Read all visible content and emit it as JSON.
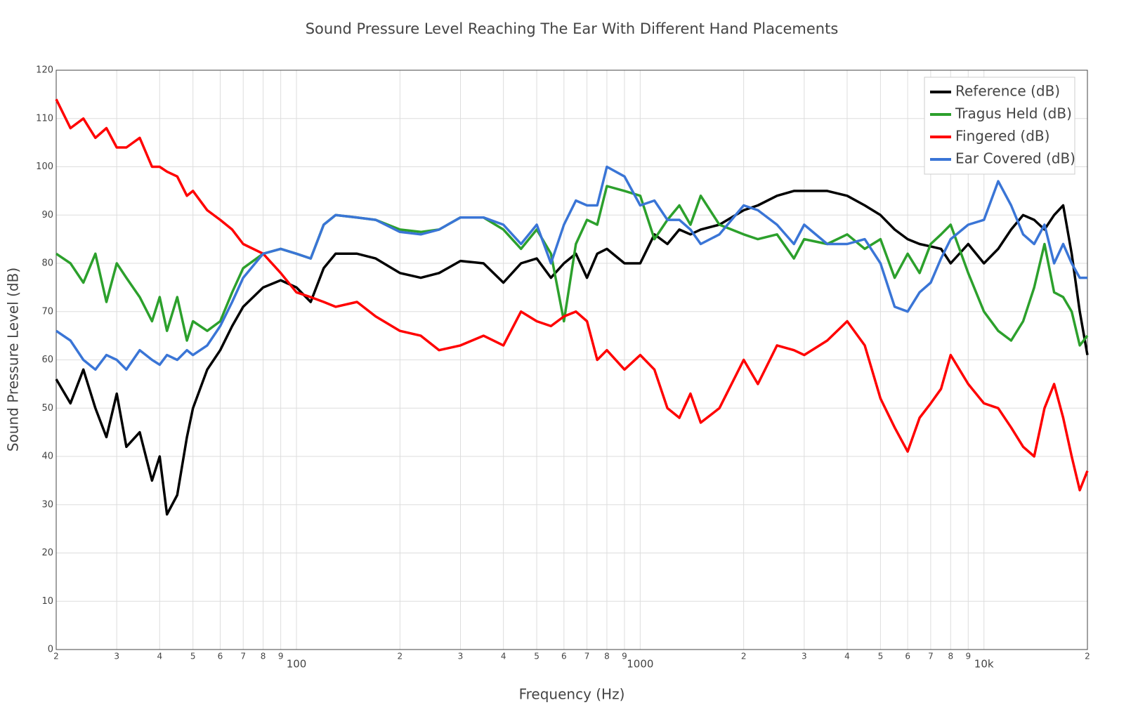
{
  "chart_data": {
    "type": "line",
    "title": "Sound Pressure Level Reaching The Ear With Different Hand Placements",
    "x_label": "Frequency (Hz)",
    "y_label": "Sound Pressure Level (dB)",
    "xscale": "log",
    "xlim": [
      20,
      20000
    ],
    "ylim": [
      0,
      120
    ],
    "xticks": [
      {
        "value": 20,
        "label": "2"
      },
      {
        "value": 30,
        "label": "3"
      },
      {
        "value": 40,
        "label": "4"
      },
      {
        "value": 50,
        "label": "5"
      },
      {
        "value": 60,
        "label": "6"
      },
      {
        "value": 70,
        "label": "7"
      },
      {
        "value": 80,
        "label": "8"
      },
      {
        "value": 90,
        "label": "9"
      },
      100,
      {
        "value": 200,
        "label": "2"
      },
      {
        "value": 300,
        "label": "3"
      },
      {
        "value": 400,
        "label": "4"
      },
      {
        "value": 500,
        "label": "5"
      },
      {
        "value": 600,
        "label": "6"
      },
      {
        "value": 700,
        "label": "7"
      },
      {
        "value": 800,
        "label": "8"
      },
      {
        "value": 900,
        "label": "9"
      },
      1000,
      {
        "value": 2000,
        "label": "2"
      },
      {
        "value": 3000,
        "label": "3"
      },
      {
        "value": 4000,
        "label": "4"
      },
      {
        "value": 5000,
        "label": "5"
      },
      {
        "value": 6000,
        "label": "6"
      },
      {
        "value": 7000,
        "label": "7"
      },
      {
        "value": 8000,
        "label": "8"
      },
      {
        "value": 9000,
        "label": "9"
      },
      {
        "value": 10000,
        "label": "10k"
      },
      {
        "value": 20000,
        "label": "2"
      }
    ],
    "yticks": [
      0,
      10,
      20,
      30,
      40,
      50,
      60,
      70,
      80,
      90,
      100,
      110,
      120
    ],
    "grid": true,
    "legend": "top-right",
    "x": [
      20,
      22,
      24,
      26,
      28,
      30,
      32,
      35,
      38,
      40,
      42,
      45,
      48,
      50,
      55,
      60,
      65,
      70,
      80,
      90,
      100,
      110,
      120,
      130,
      150,
      170,
      200,
      230,
      260,
      300,
      350,
      400,
      450,
      500,
      550,
      600,
      650,
      700,
      750,
      800,
      900,
      1000,
      1100,
      1200,
      1300,
      1400,
      1500,
      1700,
      2000,
      2200,
      2500,
      2800,
      3000,
      3500,
      4000,
      4500,
      5000,
      5500,
      6000,
      6500,
      7000,
      7500,
      8000,
      9000,
      10000,
      11000,
      12000,
      13000,
      14000,
      15000,
      16000,
      17000,
      18000,
      19000,
      20000
    ],
    "series": [
      {
        "name": "Reference (dB)",
        "color": "#000000",
        "values": [
          56,
          51,
          58,
          50,
          44,
          53,
          42,
          45,
          35,
          40,
          28,
          32,
          44,
          50,
          58,
          62,
          67,
          71,
          75,
          76.5,
          75,
          72,
          79,
          82,
          82,
          81,
          78,
          77,
          78,
          80.5,
          80,
          76,
          80,
          81,
          77,
          80,
          82,
          77,
          82,
          83,
          80,
          80,
          86,
          84,
          87,
          86,
          87,
          88,
          91,
          92,
          94,
          95,
          95,
          95,
          94,
          92,
          90,
          87,
          85,
          84,
          83.5,
          83,
          80,
          84,
          80,
          83,
          87,
          90,
          89,
          87,
          90,
          92,
          82,
          70,
          61
        ]
      },
      {
        "name": "Tragus Held (dB)",
        "color": "#2ca02c",
        "values": [
          82,
          80,
          76,
          82,
          72,
          80,
          77,
          73,
          68,
          73,
          66,
          73,
          64,
          68,
          66,
          68,
          74,
          79,
          82,
          83,
          82,
          81,
          88,
          90,
          89.5,
          89,
          87,
          86.5,
          87,
          89.5,
          89.5,
          87,
          83,
          87,
          82,
          68,
          84,
          89,
          88,
          96,
          95,
          94,
          85,
          89,
          92,
          88,
          94,
          88,
          86,
          85,
          86,
          81,
          85,
          84,
          86,
          83,
          85,
          77,
          82,
          78,
          84,
          86,
          88,
          78,
          70,
          66,
          64,
          68,
          75,
          84,
          74,
          73,
          70,
          63,
          65
        ]
      },
      {
        "name": "Fingered (dB)",
        "color": "#ff0000",
        "values": [
          114,
          108,
          110,
          106,
          108,
          104,
          104,
          106,
          100,
          100,
          99,
          98,
          94,
          95,
          91,
          89,
          87,
          84,
          82,
          78,
          74,
          73,
          72,
          71,
          72,
          69,
          66,
          65,
          62,
          63,
          65,
          63,
          70,
          68,
          67,
          69,
          70,
          68,
          60,
          62,
          58,
          61,
          58,
          50,
          48,
          53,
          47,
          50,
          60,
          55,
          63,
          62,
          61,
          64,
          68,
          63,
          52,
          46,
          41,
          48,
          51,
          54,
          61,
          55,
          51,
          50,
          46,
          42,
          40,
          50,
          55,
          48,
          40,
          33,
          37
        ]
      },
      {
        "name": "Ear Covered (dB)",
        "color": "#3a75d6",
        "values": [
          66,
          64,
          60,
          58,
          61,
          60,
          58,
          62,
          60,
          59,
          61,
          60,
          62,
          61,
          63,
          67,
          72,
          77,
          82,
          83,
          82,
          81,
          88,
          90,
          89.5,
          89,
          86.5,
          86,
          87,
          89.5,
          89.5,
          88,
          84,
          88,
          80,
          88,
          93,
          92,
          92,
          100,
          98,
          92,
          93,
          89,
          89,
          87,
          84,
          86,
          92,
          91,
          88,
          84,
          88,
          84,
          84,
          85,
          80,
          71,
          70,
          74,
          76,
          81,
          85,
          88,
          89,
          97,
          92,
          86,
          84,
          88,
          80,
          84,
          80,
          77,
          77
        ]
      }
    ]
  }
}
